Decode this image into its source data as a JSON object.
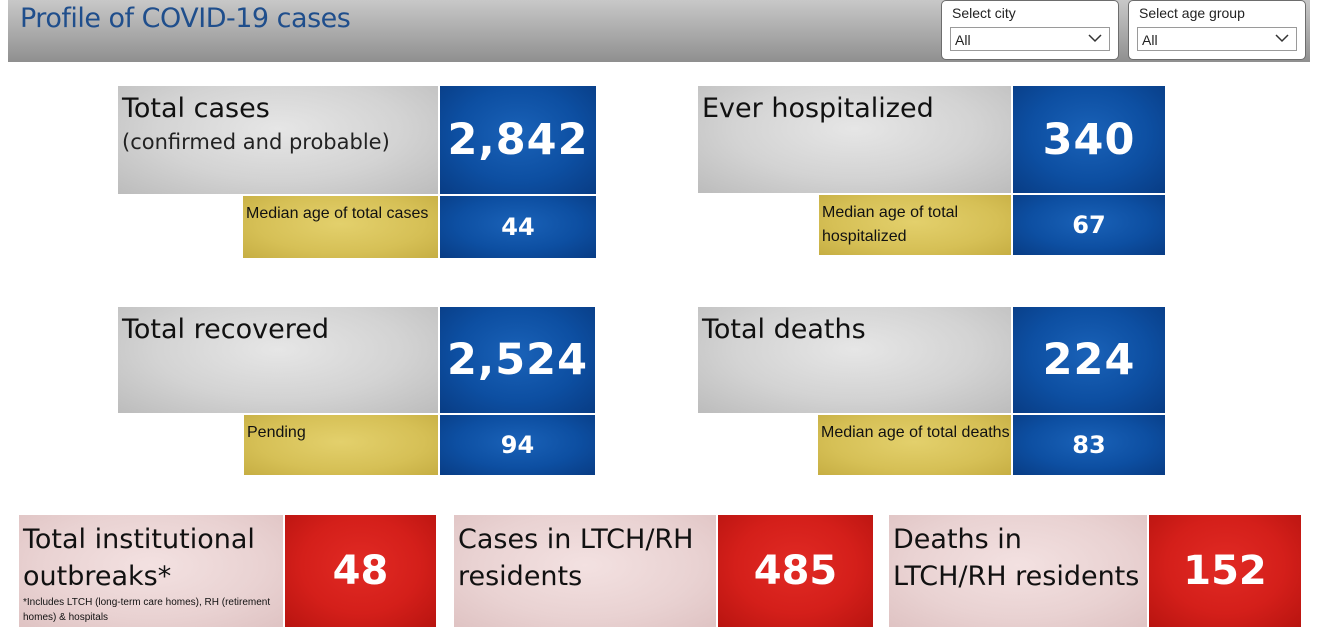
{
  "header": {
    "title": "Profile of COVID-19 cases",
    "city_filter": {
      "label": "Select city",
      "value": "All"
    },
    "age_filter": {
      "label": "Select age group",
      "value": "All"
    }
  },
  "cards": {
    "total_cases": {
      "title": "Total cases",
      "subtitle": "(confirmed and probable)",
      "value": "2,842",
      "sub_label": "Median age of total cases",
      "sub_value": "44"
    },
    "hospitalized": {
      "title": "Ever hospitalized",
      "value": "340",
      "sub_label": "Median age of total hospitalized",
      "sub_value": "67"
    },
    "recovered": {
      "title": "Total recovered",
      "value": "2,524",
      "sub_label": "Pending",
      "sub_value": "94"
    },
    "deaths": {
      "title": "Total deaths",
      "value": "224",
      "sub_label": "Median age of total deaths",
      "sub_value": "83"
    }
  },
  "panels": {
    "outbreaks": {
      "title": "Total institutional outbreaks*",
      "footnote": "*Includes LTCH (long-term care homes), RH (retirement homes) & hospitals",
      "value": "48"
    },
    "ltch_cases": {
      "title": "Cases in LTCH/RH residents",
      "value": "485"
    },
    "ltch_deaths": {
      "title": "Deaths in LTCH/RH residents",
      "value": "152"
    }
  },
  "colors": {
    "header_title": "#1f4e8c",
    "blue": "#0d4fa2",
    "yellow": "#d6c056",
    "red": "#d41f1a",
    "pink": "#e9d2d2",
    "grey": "#d3d3d3"
  },
  "icons": {
    "dropdown": "chevron-down-icon"
  }
}
